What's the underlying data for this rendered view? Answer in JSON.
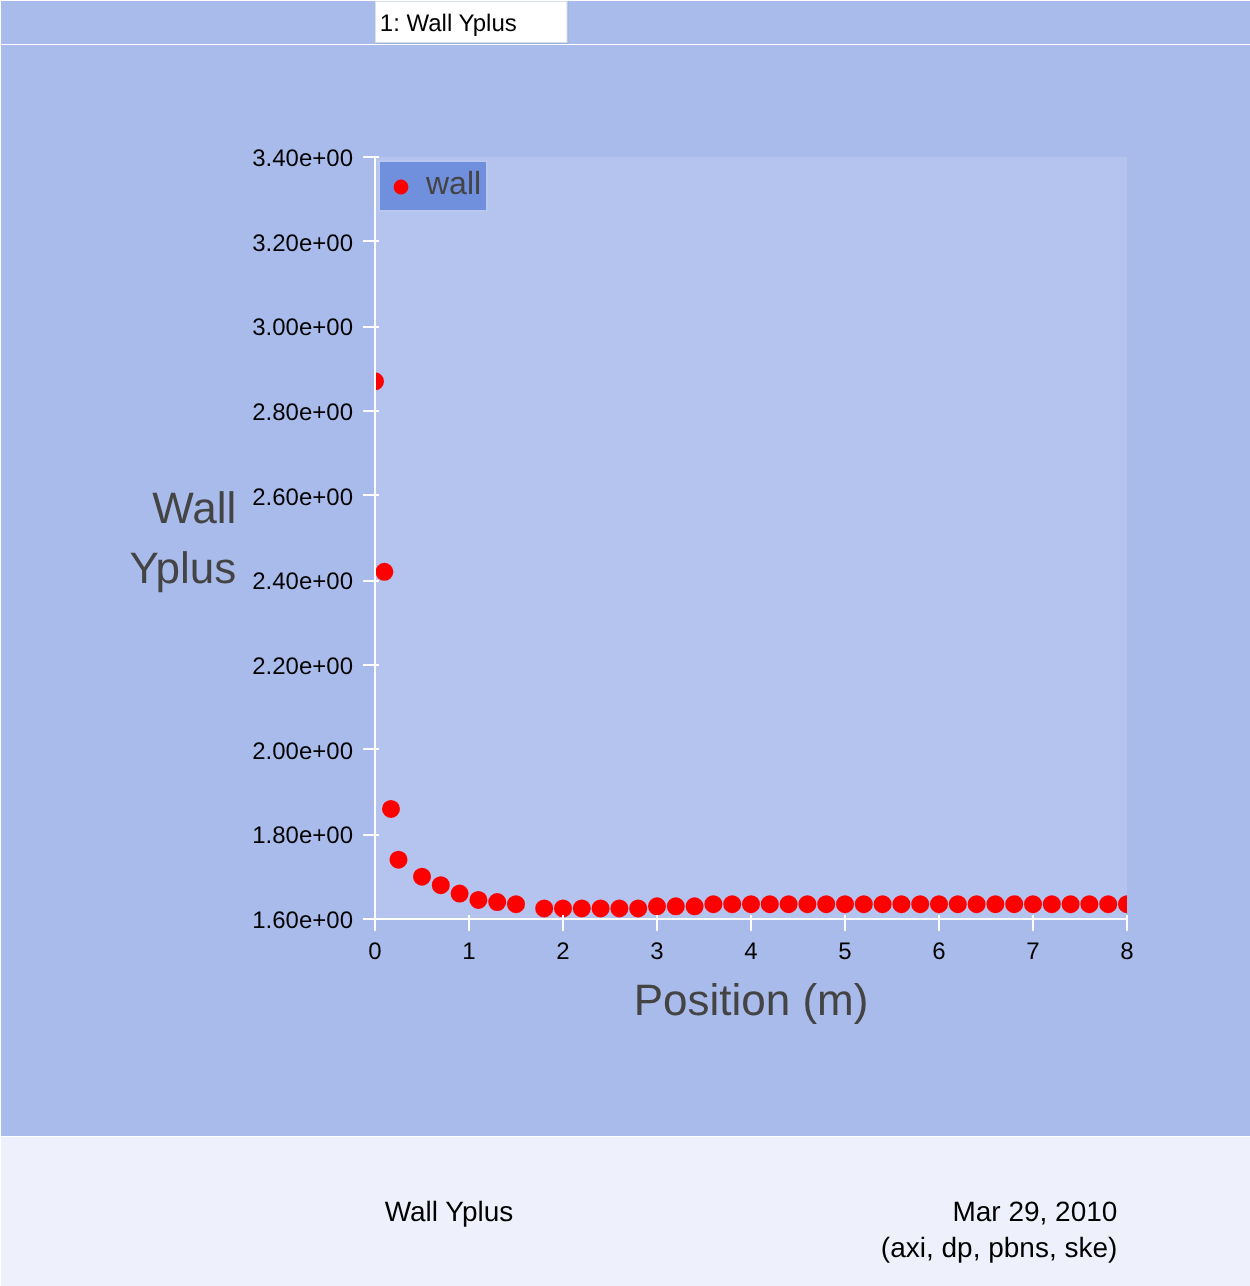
{
  "chart_data": {
    "type": "scatter",
    "title": "Wall Yplus",
    "xlabel": "Position (m)",
    "ylabel": "Wall\nYplus",
    "annotations": [
      "1: Wall Yplus",
      "Mar 29, 2010",
      "(axi, dp, pbns, ske)"
    ],
    "x": [
      0.0,
      0.1,
      0.17,
      0.25,
      0.5,
      0.7,
      0.9,
      1.1,
      1.3,
      1.5,
      1.8,
      2.0,
      2.2,
      2.4,
      2.6,
      2.8,
      3.0,
      3.2,
      3.4,
      3.6,
      3.8,
      4.0,
      4.2,
      4.4,
      4.6,
      4.8,
      5.0,
      5.2,
      5.4,
      5.6,
      5.8,
      6.0,
      6.2,
      6.4,
      6.6,
      6.8,
      7.0,
      7.2,
      7.4,
      7.6,
      7.8,
      8.0
    ],
    "series": [
      {
        "name": "wall",
        "color": "#ff0000",
        "values": [
          2.87,
          2.42,
          1.86,
          1.74,
          1.7,
          1.68,
          1.66,
          1.645,
          1.64,
          1.635,
          1.625,
          1.625,
          1.625,
          1.625,
          1.625,
          1.625,
          1.63,
          1.63,
          1.63,
          1.635,
          1.635,
          1.635,
          1.635,
          1.635,
          1.635,
          1.635,
          1.635,
          1.635,
          1.635,
          1.635,
          1.635,
          1.635,
          1.635,
          1.635,
          1.635,
          1.635,
          1.635,
          1.635,
          1.635,
          1.635,
          1.635,
          1.635
        ]
      }
    ],
    "xlim": [
      0,
      8
    ],
    "xticks": [
      0,
      1,
      2,
      3,
      4,
      5,
      6,
      7,
      8
    ],
    "ylim": [
      1.6,
      3.4
    ],
    "yticks": [
      {
        "value": 1.6,
        "label": "1.60e+00"
      },
      {
        "value": 1.8,
        "label": "1.80e+00"
      },
      {
        "value": 2.0,
        "label": "2.00e+00"
      },
      {
        "value": 2.2,
        "label": "2.20e+00"
      },
      {
        "value": 2.4,
        "label": "2.40e+00"
      },
      {
        "value": 2.6,
        "label": "2.60e+00"
      },
      {
        "value": 2.8,
        "label": "2.80e+00"
      },
      {
        "value": 3.0,
        "label": "3.00e+00"
      },
      {
        "value": 3.2,
        "label": "3.20e+00"
      },
      {
        "value": 3.4,
        "label": "3.40e+00"
      }
    ],
    "marker": "circle",
    "legend": "top left",
    "grid": false
  }
}
